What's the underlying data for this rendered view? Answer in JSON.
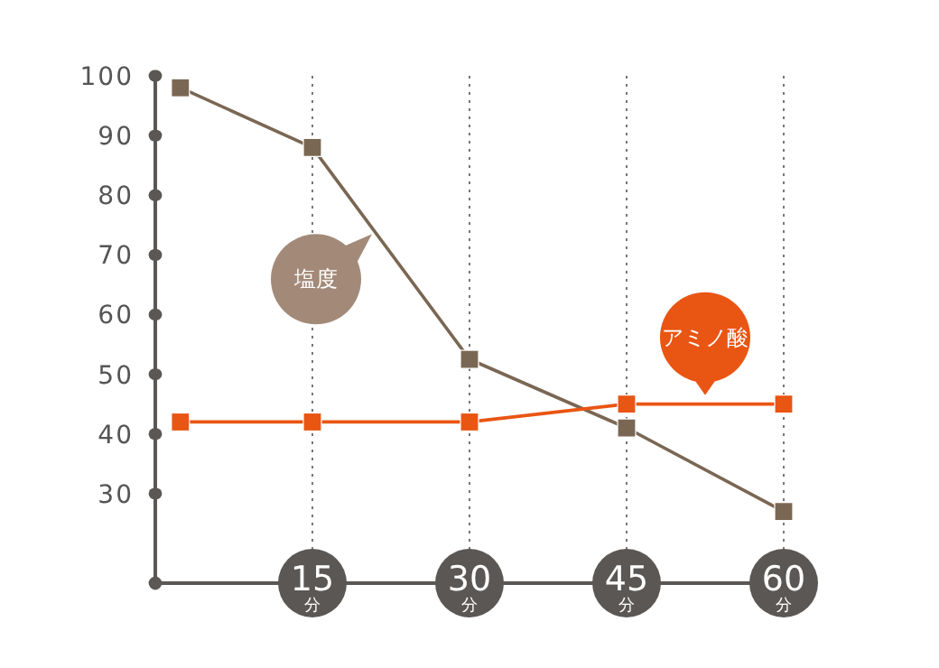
{
  "chart_data": {
    "type": "line",
    "x": [
      2.4,
      15,
      30,
      45,
      60
    ],
    "series": [
      {
        "name": "塩度",
        "color": "#7a6753",
        "values": [
          98,
          88,
          52.5,
          41,
          27
        ]
      },
      {
        "name": "アミノ酸",
        "color": "#e95513",
        "values": [
          42,
          42,
          42,
          45,
          45
        ]
      }
    ],
    "xlim": [
      0,
      60
    ],
    "xticks": [
      {
        "value": 0,
        "label": null
      },
      {
        "value": 15,
        "label": "15分"
      },
      {
        "value": 30,
        "label": "30分"
      },
      {
        "value": 45,
        "label": "45分"
      },
      {
        "value": 60,
        "label": "60分"
      }
    ],
    "ylim": [
      15,
      100
    ],
    "yticks": [
      {
        "value": 15,
        "label": null
      },
      30,
      40,
      50,
      60,
      70,
      80,
      90,
      100
    ],
    "grid": "x",
    "marker": "square",
    "line_style": "solid"
  }
}
